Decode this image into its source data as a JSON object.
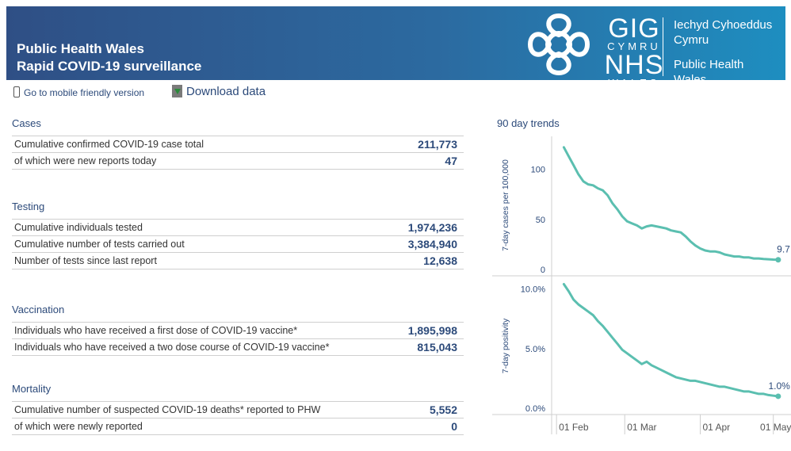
{
  "header": {
    "title_line1": "Public Health Wales",
    "title_line2": "Rapid COVID-19 surveillance",
    "logo_gig": "GIG",
    "logo_cymru": "CYMRU",
    "logo_nhs": "NHS",
    "logo_wales": "WALES",
    "org_welsh_line1": "Iechyd Cyhoeddus",
    "org_welsh_line2": "Cymru",
    "org_english_line1": "Public Health",
    "org_english_line2": "Wales"
  },
  "links": {
    "mobile": "Go to mobile friendly version",
    "download": "Download data"
  },
  "sections": {
    "cases": {
      "title": "Cases",
      "rows": [
        {
          "label": "Cumulative confirmed COVID-19 case total",
          "value": "211,773"
        },
        {
          "label": "of which were new reports today",
          "value": "47"
        }
      ]
    },
    "testing": {
      "title": "Testing",
      "rows": [
        {
          "label": "Cumulative individuals tested",
          "value": "1,974,236"
        },
        {
          "label": "Cumulative number of tests carried out",
          "value": "3,384,940"
        },
        {
          "label": "Number of tests since last report",
          "value": "12,638"
        }
      ]
    },
    "vaccination": {
      "title": "Vaccination",
      "rows": [
        {
          "label": "Individuals who have received a first dose of COVID-19 vaccine*",
          "value": "1,895,998"
        },
        {
          "label": "Individuals who have received a two dose course of COVID-19 vaccine*",
          "value": "815,043"
        }
      ]
    },
    "mortality": {
      "title": "Mortality",
      "rows": [
        {
          "label": "Cumulative number of suspected COVID-19 deaths* reported to PHW",
          "value": "5,552"
        },
        {
          "label": "of which were newly reported",
          "value": "0"
        }
      ]
    }
  },
  "trends": {
    "title": "90 day trends",
    "line_color": "#5bbfb0",
    "x_ticks": [
      "01 Feb",
      "01 Mar",
      "01 Apr",
      "01 May"
    ]
  },
  "chart_data": [
    {
      "type": "line",
      "title": "",
      "ylabel": "7-day cases per 100,000",
      "xlabel": "",
      "ylim": [
        0,
        125
      ],
      "y_ticks": [
        0,
        50,
        100
      ],
      "y_tick_labels": [
        "0",
        "50",
        "100"
      ],
      "x_tick_days": [
        0,
        28,
        59,
        89
      ],
      "x_tick_labels": [
        "01 Feb",
        "01 Mar",
        "01 Apr",
        "01 May"
      ],
      "end_label": "9.7",
      "x_days": [
        3,
        5,
        7,
        9,
        11,
        13,
        15,
        17,
        19,
        21,
        23,
        25,
        27,
        29,
        31,
        33,
        35,
        37,
        39,
        41,
        43,
        45,
        47,
        49,
        51,
        53,
        55,
        57,
        59,
        61,
        63,
        65,
        67,
        69,
        71,
        73,
        75,
        77,
        79,
        81,
        83,
        85,
        87,
        89,
        91
      ],
      "values": [
        122,
        113,
        104,
        95,
        88,
        85,
        84,
        81,
        79,
        74,
        66,
        60,
        53,
        48,
        46,
        44,
        41,
        43,
        44,
        43,
        42,
        41,
        39,
        38,
        37,
        33,
        28,
        24,
        21,
        19,
        18,
        18,
        17,
        15,
        14,
        13,
        13,
        12,
        12,
        11,
        11,
        10.5,
        10.2,
        9.9,
        9.7
      ]
    },
    {
      "type": "line",
      "title": "",
      "ylabel": "7-day positivity",
      "xlabel": "",
      "ylim": [
        0,
        10.5
      ],
      "y_ticks": [
        0,
        5,
        10
      ],
      "y_tick_labels": [
        "0.0%",
        "5.0%",
        "10.0%"
      ],
      "x_tick_days": [
        0,
        28,
        59,
        89
      ],
      "x_tick_labels": [
        "01 Feb",
        "01 Mar",
        "01 Apr",
        "01 May"
      ],
      "end_label": "1.0%",
      "x_days": [
        3,
        5,
        7,
        9,
        11,
        13,
        15,
        17,
        19,
        21,
        23,
        25,
        27,
        29,
        31,
        33,
        35,
        37,
        39,
        41,
        43,
        45,
        47,
        49,
        51,
        53,
        55,
        57,
        59,
        61,
        63,
        65,
        67,
        69,
        71,
        73,
        75,
        77,
        79,
        81,
        83,
        85,
        87,
        89,
        91
      ],
      "values": [
        10.4,
        9.8,
        9.1,
        8.7,
        8.4,
        8.1,
        7.8,
        7.3,
        6.9,
        6.4,
        5.9,
        5.4,
        4.9,
        4.6,
        4.3,
        4.0,
        3.7,
        3.9,
        3.6,
        3.4,
        3.2,
        3.0,
        2.8,
        2.6,
        2.5,
        2.4,
        2.3,
        2.3,
        2.2,
        2.1,
        2.0,
        1.9,
        1.8,
        1.8,
        1.7,
        1.6,
        1.5,
        1.4,
        1.4,
        1.3,
        1.2,
        1.2,
        1.1,
        1.05,
        1.0
      ]
    }
  ]
}
